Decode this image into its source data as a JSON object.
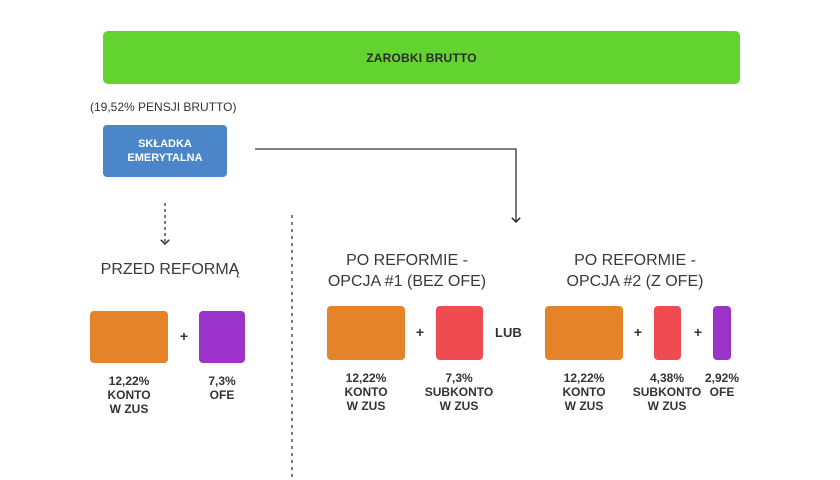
{
  "header": {
    "title": "ZAROBKI BRUTTO",
    "color": "#63d330"
  },
  "pension_note": "(19,52% PENSJI BRUTTO)",
  "contribution": {
    "label": "SKŁADKA\nEMERYTALNA",
    "color": "#4a86c8"
  },
  "before": {
    "heading": "PRZED REFORMĄ",
    "items": [
      {
        "caption": "12,22%\nKONTO\nW ZUS",
        "color": "#e5832a"
      },
      {
        "caption": "7,3%\nOFE",
        "color": "#9b33c9"
      }
    ]
  },
  "option1": {
    "heading": "PO REFORMIE -\nOPCJA #1 (BEZ OFE)",
    "items": [
      {
        "caption": "12,22%\nKONTO\nW ZUS",
        "color": "#e5832a"
      },
      {
        "caption": "7,3%\nSUBKONTO\nW ZUS",
        "color": "#ef4b50"
      }
    ]
  },
  "separator": "LUB",
  "option2": {
    "heading": "PO REFORMIE -\nOPCJA #2 (Z OFE)",
    "items": [
      {
        "caption": "12,22%\nKONTO\nW ZUS",
        "color": "#e5832a"
      },
      {
        "caption": "4,38%\nSUBKONTO\nW ZUS",
        "color": "#ef4b50"
      },
      {
        "caption": "2,92%\nOFE",
        "color": "#9b33c9"
      }
    ]
  },
  "plus": "+"
}
